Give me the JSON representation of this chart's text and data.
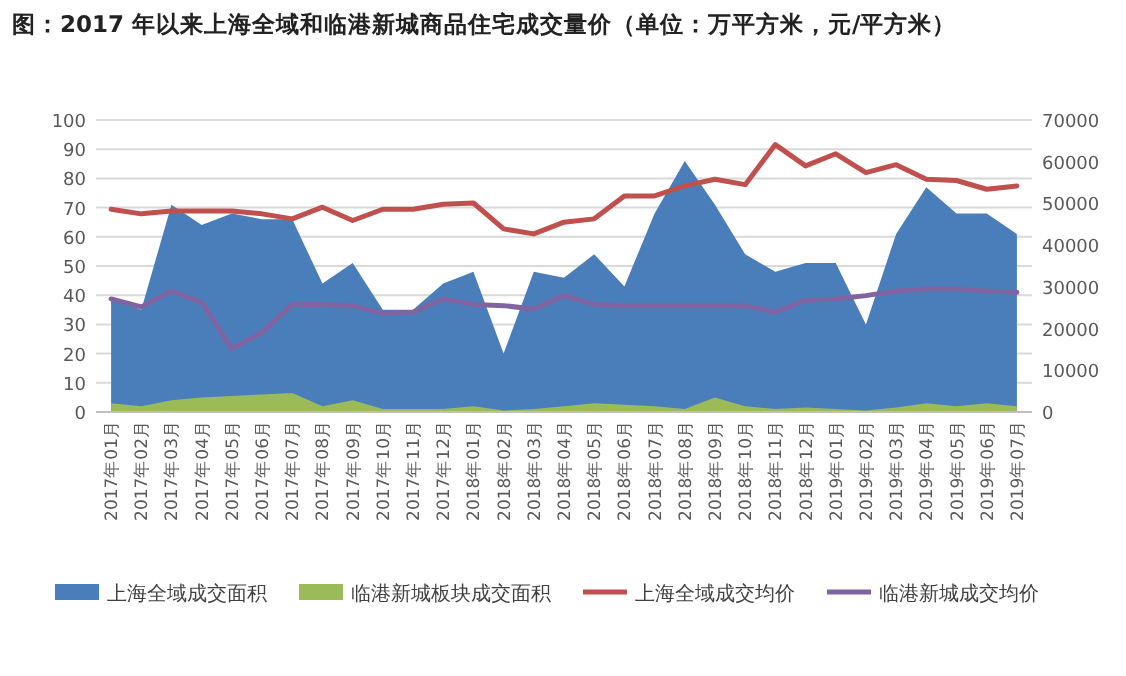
{
  "chart_data": {
    "type": "area",
    "title": "图：2017 年以来上海全域和临港新城商品住宅成交量价（单位：万平方米，元/平方米）",
    "categories": [
      "2017年01月",
      "2017年02月",
      "2017年03月",
      "2017年04月",
      "2017年05月",
      "2017年06月",
      "2017年07月",
      "2017年08月",
      "2017年09月",
      "2017年10月",
      "2017年11月",
      "2017年12月",
      "2018年01月",
      "2018年02月",
      "2018年03月",
      "2018年04月",
      "2018年05月",
      "2018年06月",
      "2018年07月",
      "2018年08月",
      "2018年09月",
      "2018年10月",
      "2018年11月",
      "2018年12月",
      "2019年01月",
      "2019年02月",
      "2019年03月",
      "2019年04月",
      "2019年05月",
      "2019年06月",
      "2019年07月"
    ],
    "series": [
      {
        "name": "上海全域成交面积",
        "type": "area",
        "color": "#4a7ebb",
        "values": [
          39,
          35,
          71,
          64,
          68,
          66,
          66,
          44,
          51,
          35,
          35,
          44,
          48,
          20,
          48,
          46,
          54,
          43,
          68,
          86,
          71,
          54,
          48,
          51,
          51,
          30,
          61,
          77,
          68,
          68,
          61
        ]
      },
      {
        "name": "临港新城板块成交面积",
        "type": "area",
        "color": "#9bbb59",
        "values": [
          3,
          2,
          4,
          5,
          5.5,
          6,
          6.5,
          2,
          4,
          1,
          1,
          1,
          2,
          0.5,
          1,
          2,
          3,
          2.5,
          2,
          1,
          5,
          2,
          1,
          1.5,
          1,
          0.5,
          1.5,
          3,
          2,
          3,
          2
        ]
      },
      {
        "name": "上海全域成交均价",
        "type": "line",
        "axis": "y2",
        "color": "#c0504d",
        "values": [
          48600,
          47500,
          48200,
          48200,
          48200,
          47500,
          46300,
          49100,
          45900,
          48600,
          48600,
          49800,
          50100,
          43900,
          42700,
          45500,
          46300,
          51800,
          51800,
          54200,
          55800,
          54500,
          64100,
          59000,
          61900,
          57400,
          59300,
          55800,
          55500,
          53400,
          54200
        ]
      },
      {
        "name": "临港新城成交均价",
        "type": "line",
        "axis": "y2",
        "color": "#8064a2",
        "values": [
          27100,
          25200,
          29000,
          26300,
          15200,
          19100,
          25800,
          25800,
          25500,
          23600,
          23900,
          27100,
          25800,
          25500,
          24700,
          27900,
          25800,
          25500,
          25500,
          25500,
          25500,
          25500,
          23900,
          26800,
          27100,
          27900,
          29000,
          29500,
          29500,
          29000,
          28700
        ]
      }
    ],
    "ylim": [
      0,
      100
    ],
    "yticks": [
      0,
      10,
      20,
      30,
      40,
      50,
      60,
      70,
      80,
      90,
      100
    ],
    "y2lim": [
      0,
      70000
    ],
    "y2ticks": [
      0,
      10000,
      20000,
      30000,
      40000,
      50000,
      60000,
      70000
    ],
    "grid": "y",
    "legend": "bottom"
  }
}
